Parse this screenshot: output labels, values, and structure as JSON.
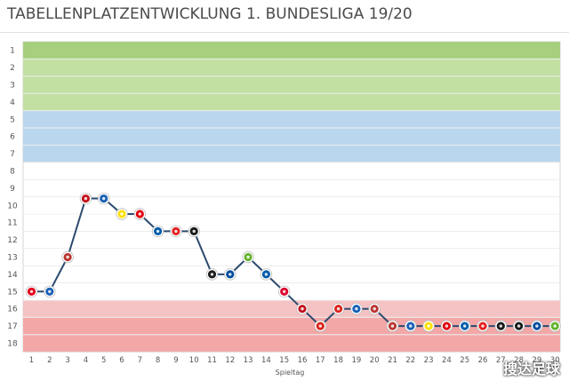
{
  "title": "TABELLENPLATZENTWICKLUNG 1. BUNDESLIGA 19/20",
  "watermark": "搜达足球",
  "chart_data": {
    "type": "line",
    "title": "TABELLENPLATZENTWICKLUNG 1. BUNDESLIGA 19/20",
    "xlabel": "Spieltag",
    "ylabel": "",
    "x": [
      1,
      2,
      3,
      4,
      5,
      6,
      7,
      8,
      9,
      10,
      11,
      12,
      13,
      14,
      15,
      16,
      17,
      18,
      19,
      20,
      21,
      22,
      23,
      24,
      25,
      26,
      27,
      28,
      29,
      30
    ],
    "values": [
      15,
      15,
      13,
      9.6,
      9.6,
      10.5,
      10.5,
      11.5,
      11.5,
      11.5,
      14,
      14,
      13,
      14,
      15,
      16,
      17,
      16,
      16,
      16,
      17,
      17,
      17,
      17,
      17,
      17,
      17,
      17,
      17,
      17
    ],
    "opponent_icons": [
      "freiburg",
      "hoffenheim",
      "augsburg",
      "mainz",
      "hoffenheim",
      "dortmund",
      "frankfurt",
      "hertha",
      "leverkusen",
      "gladbach",
      "gladbach",
      "schalke",
      "wolfsburg",
      "hertha",
      "bayern",
      "mainz",
      "fortuna",
      "fortuna",
      "hoffenheim",
      "augsburg",
      "augsburg",
      "hoffenheim",
      "dortmund",
      "frankfurt",
      "hertha",
      "leverkusen",
      "gladbach",
      "gladbach",
      "schalke",
      "wolfsburg"
    ],
    "xticks": [
      "1",
      "2",
      "3",
      "4",
      "5",
      "6",
      "7",
      "8",
      "9",
      "10",
      "11",
      "12",
      "13",
      "14",
      "15",
      "16",
      "17",
      "18",
      "19",
      "20",
      "21",
      "22",
      "23",
      "24",
      "25",
      "26",
      "27",
      "28",
      "29",
      "30"
    ],
    "yticks": [
      "1",
      "2",
      "3",
      "4",
      "5",
      "6",
      "7",
      "8",
      "9",
      "10",
      "11",
      "12",
      "13",
      "14",
      "15",
      "16",
      "17",
      "18"
    ],
    "ylim": [
      1,
      18
    ],
    "grid": true,
    "bands": [
      {
        "from": 1,
        "to": 1,
        "color": "#a6cf7e"
      },
      {
        "from": 2,
        "to": 4,
        "color": "#c3e0a3"
      },
      {
        "from": 5,
        "to": 7,
        "color": "#bad6ee"
      },
      {
        "from": 16,
        "to": 16,
        "color": "#f5c3c3"
      },
      {
        "from": 17,
        "to": 18,
        "color": "#f3a7a7"
      }
    ],
    "line_color": "#2c4a6e"
  },
  "team_colors": {
    "freiburg": "#e2001a",
    "hoffenheim": "#1961b5",
    "augsburg": "#ba3733",
    "mainz": "#c3141e",
    "dortmund": "#fde100",
    "frankfurt": "#e1000f",
    "hertha": "#005ca9",
    "leverkusen": "#e32221",
    "gladbach": "#1a1a1a",
    "schalke": "#004d9d",
    "wolfsburg": "#65b32e",
    "bayern": "#dc052d",
    "fortuna": "#da251d"
  }
}
